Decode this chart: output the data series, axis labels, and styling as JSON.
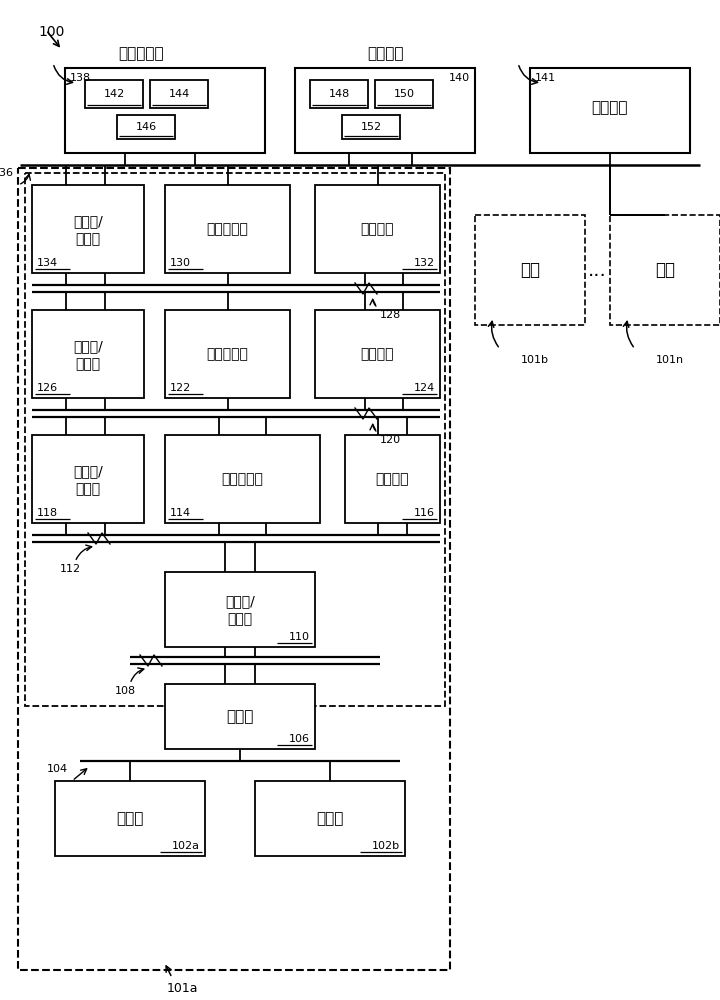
{
  "labels": {
    "enterprise": "企业控制器",
    "operator_top": "操作员站",
    "history": "历史装置",
    "router_fw": "路由器/\n防火墙",
    "factory_ctrl": "工厂控制器",
    "unit_ctrl": "单元控制器",
    "machine_ctrl": "机器控制器",
    "op_stn": "操作员站",
    "switch_fw": "交换机/\n防火墙",
    "controller": "控制器",
    "sensor": "传感器",
    "actuator": "致动器",
    "factory": "工厂",
    "ellipsis": "..."
  }
}
